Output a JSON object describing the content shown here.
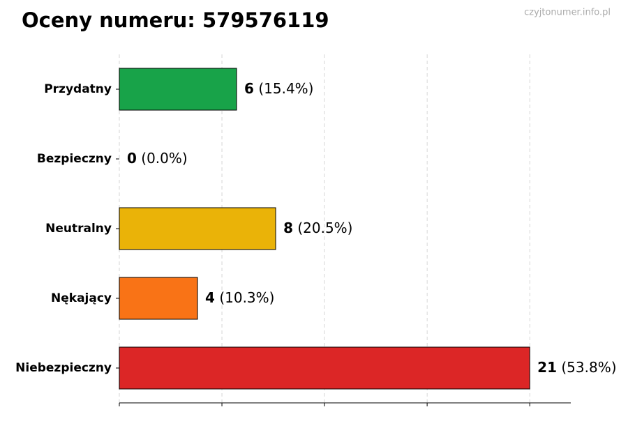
{
  "chart_data": {
    "type": "barh",
    "title": "Oceny numeru: 579576119",
    "watermark": "czyjtonumer.info.pl",
    "categories": [
      "Przydatny",
      "Bezpieczny",
      "Neutralny",
      "Nękający",
      "Niebezpieczny"
    ],
    "values": [
      6,
      0,
      8,
      4,
      21
    ],
    "colors": [
      "#18a349",
      "#9ca3af",
      "#eab308",
      "#f97316",
      "#dc2626"
    ],
    "shares": {
      "values": [
        15.4,
        0.0,
        20.5,
        10.3,
        53.8
      ],
      "value_labels": [
        "(15.4%)",
        "(0.0%)",
        "(20.5%)",
        "(10.3%)",
        "(53.8%)"
      ]
    },
    "xlim": [
      0,
      23.1
    ],
    "xticks": [
      0,
      5.25,
      10.5,
      15.75,
      21
    ],
    "grid": true
  }
}
